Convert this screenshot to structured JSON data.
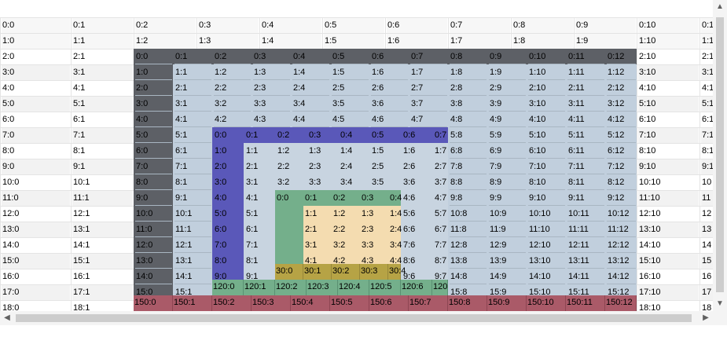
{
  "title": "Nested spanned grid",
  "colors": {
    "dark": "#5d6066",
    "steel": "#c1cfdd",
    "indigo": "#5a58b9",
    "green": "#74af8b",
    "tan": "#f4dcb0",
    "olive": "#b6a345",
    "rose": "#aa5a68",
    "gridline": "#e4e4e4"
  },
  "outer_rows": [
    [
      "0:0",
      "0:1",
      "0:2",
      "0:3",
      "0:4",
      "0:5",
      "0:6",
      "0:7",
      "0:8",
      "0:9",
      "0:10",
      "0:1"
    ],
    [
      "1:0",
      "1:1",
      "1:2",
      "1:3",
      "1:4",
      "1:5",
      "1:6",
      "1:7",
      "1:8",
      "1:9",
      "1:10",
      "1:1"
    ],
    [
      "2:0",
      "2:1",
      "",
      "",
      "",
      "",
      "",
      "",
      "",
      "",
      "2:10",
      "2:1"
    ],
    [
      "3:0",
      "3:1",
      "",
      "",
      "",
      "",
      "",
      "",
      "",
      "",
      "3:10",
      "3:1"
    ],
    [
      "4:0",
      "4:1",
      "",
      "",
      "",
      "",
      "",
      "",
      "",
      "",
      "4:10",
      "4:1"
    ],
    [
      "5:0",
      "5:1",
      "",
      "",
      "",
      "",
      "",
      "",
      "",
      "",
      "5:10",
      "5:1"
    ],
    [
      "6:0",
      "6:1",
      "",
      "",
      "",
      "",
      "",
      "",
      "",
      "",
      "6:10",
      "6:1"
    ],
    [
      "7:0",
      "7:1",
      "",
      "",
      "",
      "",
      "",
      "",
      "",
      "",
      "7:10",
      "7:1"
    ],
    [
      "8:0",
      "8:1",
      "",
      "",
      "",
      "",
      "",
      "",
      "",
      "",
      "8:10",
      "8:1"
    ],
    [
      "9:0",
      "9:1",
      "",
      "",
      "",
      "",
      "",
      "",
      "",
      "",
      "9:10",
      "9:1"
    ],
    [
      "10:0",
      "10:1",
      "",
      "",
      "",
      "",
      "",
      "",
      "",
      "",
      "10:10",
      "10"
    ],
    [
      "11:0",
      "11:1",
      "",
      "",
      "",
      "",
      "",
      "",
      "",
      "",
      "11:10",
      "11"
    ],
    [
      "12:0",
      "12:1",
      "",
      "",
      "",
      "",
      "",
      "",
      "",
      "",
      "12:10",
      "12"
    ],
    [
      "13:0",
      "13:1",
      "",
      "",
      "",
      "",
      "",
      "",
      "",
      "",
      "13:10",
      "13"
    ],
    [
      "14:0",
      "14:1",
      "",
      "",
      "",
      "",
      "",
      "",
      "",
      "",
      "14:10",
      "14"
    ],
    [
      "15:0",
      "15:1",
      "",
      "",
      "",
      "",
      "",
      "",
      "",
      "",
      "15:10",
      "15"
    ],
    [
      "16:0",
      "16:1",
      "",
      "",
      "",
      "",
      "",
      "",
      "",
      "",
      "16:10",
      "16"
    ],
    [
      "17:0",
      "17:1",
      "",
      "",
      "",
      "",
      "",
      "",
      "",
      "",
      "17:10",
      "17"
    ],
    [
      "18:0",
      "18:1",
      "",
      "",
      "",
      "",
      "",
      "",
      "",
      "",
      "18:10",
      "18"
    ]
  ],
  "level1_rows": [
    [
      "0:0",
      "0:1",
      "0:2",
      "0:3",
      "0:4",
      "0:5",
      "0:6",
      "0:7",
      "0:8",
      "0:9",
      "0:10",
      "0:11",
      "0:12"
    ],
    [
      "1:0",
      "1:1",
      "1:2",
      "1:3",
      "1:4",
      "1:5",
      "1:6",
      "1:7",
      "1:8",
      "1:9",
      "1:10",
      "1:11",
      "1:12"
    ],
    [
      "2:0",
      "2:1",
      "2:2",
      "2:3",
      "2:4",
      "2:5",
      "2:6",
      "2:7",
      "2:8",
      "2:9",
      "2:10",
      "2:11",
      "2:12"
    ],
    [
      "3:0",
      "3:1",
      "3:2",
      "3:3",
      "3:4",
      "3:5",
      "3:6",
      "3:7",
      "3:8",
      "3:9",
      "3:10",
      "3:11",
      "3:12"
    ],
    [
      "4:0",
      "4:1",
      "4:2",
      "4:3",
      "4:4",
      "4:5",
      "4:6",
      "4:7",
      "4:8",
      "4:9",
      "4:10",
      "4:11",
      "4:12"
    ],
    [
      "5:0",
      "5:1",
      "",
      "",
      "",
      "",
      "",
      "",
      "5:8",
      "5:9",
      "5:10",
      "5:11",
      "5:12"
    ],
    [
      "6:0",
      "6:1",
      "",
      "",
      "",
      "",
      "",
      "",
      "6:8",
      "6:9",
      "6:10",
      "6:11",
      "6:12"
    ],
    [
      "7:0",
      "7:1",
      "",
      "",
      "",
      "",
      "",
      "",
      "7:8",
      "7:9",
      "7:10",
      "7:11",
      "7:12"
    ],
    [
      "8:0",
      "8:1",
      "",
      "",
      "",
      "",
      "",
      "",
      "8:8",
      "8:9",
      "8:10",
      "8:11",
      "8:12"
    ],
    [
      "9:0",
      "9:1",
      "",
      "",
      "",
      "",
      "",
      "",
      "9:8",
      "9:9",
      "9:10",
      "9:11",
      "9:12"
    ],
    [
      "10:0",
      "10:1",
      "",
      "",
      "",
      "",
      "",
      "",
      "10:8",
      "10:9",
      "10:10",
      "10:11",
      "10:12"
    ],
    [
      "11:0",
      "11:1",
      "",
      "",
      "",
      "",
      "",
      "",
      "11:8",
      "11:9",
      "11:10",
      "11:11",
      "11:12"
    ],
    [
      "12:0",
      "12:1",
      "",
      "",
      "",
      "",
      "",
      "",
      "12:8",
      "12:9",
      "12:10",
      "12:11",
      "12:12"
    ],
    [
      "13:0",
      "13:1",
      "",
      "",
      "",
      "",
      "",
      "",
      "13:8",
      "13:9",
      "13:10",
      "13:11",
      "13:12"
    ],
    [
      "14:0",
      "14:1",
      "",
      "",
      "",
      "",
      "",
      "",
      "14:8",
      "14:9",
      "14:10",
      "14:11",
      "14:12"
    ],
    [
      "15:0",
      "15:1",
      "",
      "",
      "",
      "",
      "",
      "",
      "15:8",
      "15:9",
      "15:10",
      "15:11",
      "15:12"
    ]
  ],
  "level1_footer": [
    "150:0",
    "150:1",
    "150:2",
    "150:3",
    "150:4",
    "150:5",
    "150:6",
    "150:7",
    "150:8",
    "150:9",
    "150:10",
    "150:11",
    "150:12"
  ],
  "level2_rows": [
    [
      "0:0",
      "0:1",
      "0:2",
      "0:3",
      "0:4",
      "0:5",
      "0:6",
      "0:7"
    ],
    [
      "1:0",
      "1:1",
      "1:2",
      "1:3",
      "1:4",
      "1:5",
      "1:6",
      "1:7"
    ],
    [
      "2:0",
      "2:1",
      "2:2",
      "2:3",
      "2:4",
      "2:5",
      "2:6",
      "2:7"
    ],
    [
      "3:0",
      "3:1",
      "3:2",
      "3:3",
      "3:4",
      "3:5",
      "3:6",
      "3:7"
    ],
    [
      "4:0",
      "4:1",
      "",
      "",
      "",
      "",
      "4:6",
      "4:7"
    ],
    [
      "5:0",
      "5:1",
      "",
      "",
      "",
      "",
      "5:6",
      "5:7"
    ],
    [
      "6:0",
      "6:1",
      "",
      "",
      "",
      "",
      "6:6",
      "6:7"
    ],
    [
      "7:0",
      "7:1",
      "",
      "",
      "",
      "",
      "7:6",
      "7:7"
    ],
    [
      "8:0",
      "8:1",
      "",
      "",
      "",
      "",
      "8:6",
      "8:7"
    ],
    [
      "9:0",
      "9:1",
      "",
      "",
      "",
      "",
      "9:6",
      "9:7"
    ]
  ],
  "level2_footer": [
    "120:0",
    "120:1",
    "120:2",
    "120:3",
    "120:4",
    "120:5",
    "120:6",
    "120"
  ],
  "level3_rows": [
    [
      "0:0",
      "0:1",
      "0:2",
      "0:3",
      "0:4"
    ],
    [
      "1:1",
      "1:2",
      "1:3",
      "1:4"
    ],
    [
      "2:1",
      "2:2",
      "2:3",
      "2:4"
    ],
    [
      "3:1",
      "3:2",
      "3:3",
      "3:4"
    ],
    [
      "4:1",
      "4:2",
      "4:3",
      "4:4"
    ]
  ],
  "level3_footer": [
    "30:0",
    "30:1",
    "30:2",
    "30:3",
    "30:4"
  ],
  "scroll": {
    "up": "▲",
    "down": "▼",
    "left": "◀",
    "right": "▶"
  }
}
